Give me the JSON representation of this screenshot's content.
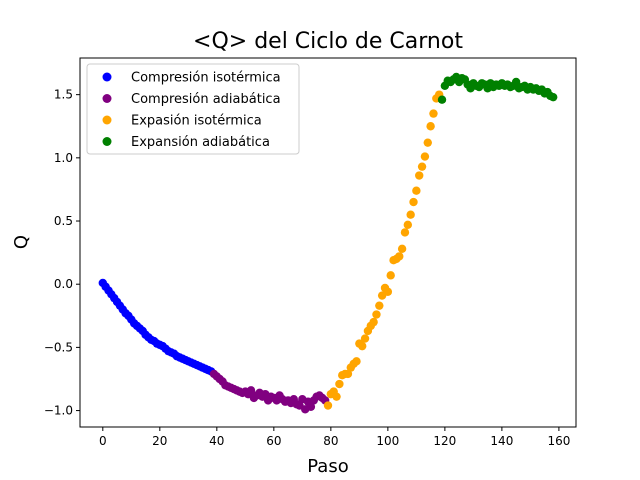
{
  "chart_data": {
    "type": "scatter",
    "title": "<Q> del Ciclo de Carnot",
    "xlabel": "Paso",
    "ylabel": "Q",
    "xlim": [
      -8,
      166
    ],
    "ylim": [
      -1.13,
      1.79
    ],
    "xticks": [
      0,
      20,
      40,
      60,
      80,
      100,
      120,
      140,
      160
    ],
    "xtick_labels": [
      "0",
      "20",
      "40",
      "60",
      "80",
      "100",
      "120",
      "140",
      "160"
    ],
    "yticks": [
      -1.0,
      -0.5,
      0.0,
      0.5,
      1.0,
      1.5
    ],
    "ytick_labels": [
      "−1.0",
      "−0.5",
      "0.0",
      "0.5",
      "1.0",
      "1.5"
    ],
    "grid": false,
    "legend_position": "upper-left",
    "series": [
      {
        "name": "Compresión isotérmica",
        "color": "#0000ff",
        "x": [
          0,
          1,
          2,
          3,
          4,
          5,
          6,
          7,
          8,
          9,
          10,
          11,
          12,
          13,
          14,
          15,
          16,
          17,
          18,
          19,
          20,
          21,
          22,
          23,
          24,
          25,
          26,
          27,
          28,
          29,
          30,
          31,
          32,
          33,
          34,
          35,
          36,
          37,
          38
        ],
        "y": [
          0.01,
          -0.02,
          -0.05,
          -0.08,
          -0.11,
          -0.14,
          -0.17,
          -0.2,
          -0.23,
          -0.25,
          -0.28,
          -0.31,
          -0.33,
          -0.35,
          -0.37,
          -0.4,
          -0.42,
          -0.44,
          -0.45,
          -0.47,
          -0.48,
          -0.49,
          -0.51,
          -0.53,
          -0.54,
          -0.55,
          -0.57,
          -0.58,
          -0.59,
          -0.6,
          -0.61,
          -0.62,
          -0.63,
          -0.64,
          -0.65,
          -0.66,
          -0.67,
          -0.68,
          -0.69
        ]
      },
      {
        "name": "Compresión adiabática",
        "color": "#800080",
        "x": [
          39,
          40,
          41,
          42,
          43,
          44,
          45,
          46,
          47,
          48,
          49,
          50,
          51,
          52,
          53,
          54,
          55,
          56,
          57,
          58,
          59,
          60,
          61,
          62,
          63,
          64,
          65,
          66,
          67,
          68,
          69,
          70,
          71,
          72,
          73,
          74,
          75,
          76,
          77,
          78
        ],
        "y": [
          -0.71,
          -0.73,
          -0.75,
          -0.77,
          -0.8,
          -0.81,
          -0.82,
          -0.83,
          -0.84,
          -0.85,
          -0.86,
          -0.85,
          -0.87,
          -0.84,
          -0.9,
          -0.88,
          -0.86,
          -0.89,
          -0.87,
          -0.92,
          -0.89,
          -0.9,
          -0.92,
          -0.88,
          -0.91,
          -0.93,
          -0.92,
          -0.94,
          -0.91,
          -0.95,
          -0.96,
          -0.91,
          -0.99,
          -0.93,
          -0.97,
          -0.92,
          -0.89,
          -0.88,
          -0.9,
          -0.92
        ]
      },
      {
        "name": "Expasión isotérmica",
        "color": "#ffa500",
        "x": [
          79,
          80,
          81,
          82,
          83,
          84,
          85,
          86,
          87,
          88,
          89,
          90,
          91,
          92,
          93,
          94,
          95,
          96,
          97,
          98,
          99,
          100,
          101,
          102,
          103,
          104,
          105,
          106,
          107,
          108,
          109,
          110,
          111,
          112,
          113,
          114,
          115,
          116,
          117,
          118
        ],
        "y": [
          -0.96,
          -0.87,
          -0.85,
          -0.89,
          -0.79,
          -0.72,
          -0.71,
          -0.71,
          -0.66,
          -0.63,
          -0.61,
          -0.47,
          -0.49,
          -0.43,
          -0.37,
          -0.33,
          -0.3,
          -0.24,
          -0.17,
          -0.09,
          -0.03,
          -0.06,
          0.07,
          0.19,
          0.2,
          0.22,
          0.28,
          0.41,
          0.47,
          0.55,
          0.65,
          0.74,
          0.86,
          0.93,
          1.01,
          1.12,
          1.25,
          1.35,
          1.47,
          1.5
        ]
      },
      {
        "name": "Expansión adiabática",
        "color": "#008000",
        "x": [
          119,
          120,
          121,
          122,
          123,
          124,
          125,
          126,
          127,
          128,
          129,
          130,
          131,
          132,
          133,
          134,
          135,
          136,
          137,
          138,
          139,
          140,
          141,
          142,
          143,
          144,
          145,
          146,
          147,
          148,
          149,
          150,
          151,
          152,
          153,
          154,
          155,
          156,
          157,
          158
        ],
        "y": [
          1.46,
          1.57,
          1.61,
          1.6,
          1.62,
          1.64,
          1.6,
          1.63,
          1.62,
          1.58,
          1.55,
          1.59,
          1.57,
          1.56,
          1.59,
          1.58,
          1.55,
          1.59,
          1.56,
          1.58,
          1.57,
          1.59,
          1.57,
          1.58,
          1.56,
          1.57,
          1.6,
          1.55,
          1.56,
          1.57,
          1.54,
          1.56,
          1.54,
          1.55,
          1.53,
          1.54,
          1.51,
          1.52,
          1.49,
          1.48
        ]
      }
    ]
  }
}
